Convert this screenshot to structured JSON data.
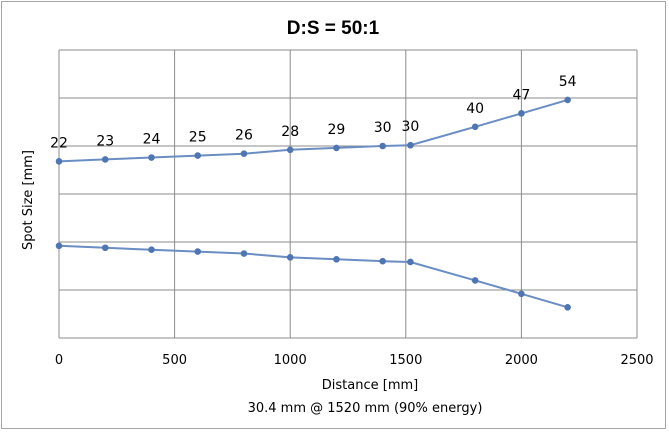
{
  "chart_data": {
    "type": "line",
    "title": "D:S = 50:1",
    "xlabel": "Distance [mm]",
    "ylabel": "Spot Size [mm]",
    "subtitle": "30.4 mm @ 1520 mm (90% energy)",
    "xlim": [
      0,
      2500
    ],
    "xticks": [
      0,
      500,
      1000,
      1500,
      2000,
      2500
    ],
    "ylim": [
      -35,
      40
    ],
    "grid": true,
    "x": [
      0,
      200,
      400,
      600,
      800,
      1000,
      1200,
      1400,
      1520,
      1800,
      2000,
      2200
    ],
    "series": [
      {
        "values": [
          11,
          11.5,
          12,
          12.5,
          13,
          14,
          14.5,
          15,
          15.2,
          20,
          23.5,
          27
        ]
      },
      {
        "values": [
          -11,
          -11.5,
          -12,
          -12.5,
          -13,
          -14,
          -14.5,
          -15,
          -15.2,
          -20,
          -23.5,
          -27
        ]
      }
    ],
    "data_labels": [
      "22",
      "23",
      "24",
      "25",
      "26",
      "28",
      "29",
      "30",
      "30",
      "40",
      "47",
      "54"
    ]
  }
}
